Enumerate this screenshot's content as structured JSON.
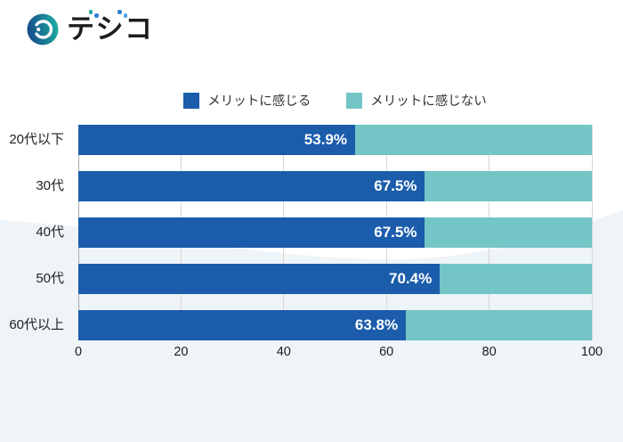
{
  "logo": {
    "name": "デジコ",
    "char1": "テ",
    "char2": "シ",
    "char3": "コ"
  },
  "colors": {
    "primary": "#1b5cab",
    "secondary": "#74c5c6",
    "wave": "#eef4f8",
    "grid": "#d6d6d6",
    "axis": "#a9a9a9",
    "logo_navy": "#17498c",
    "logo_teal": "#1caca0",
    "logo_blue": "#2e7ed5",
    "logo_blue2": "#4aa0e8"
  },
  "chart_data": {
    "type": "bar",
    "orientation": "horizontal",
    "stacked": true,
    "title": "",
    "xlabel": "",
    "ylabel": "",
    "xlim": [
      0,
      100
    ],
    "x_ticks": [
      0,
      20,
      40,
      60,
      80,
      100
    ],
    "grid": true,
    "legend_position": "top",
    "categories": [
      "20代以下",
      "30代",
      "40代",
      "50代",
      "60代以上"
    ],
    "series": [
      {
        "name": "メリットに感じる",
        "color": "#1b5cab",
        "values": [
          53.9,
          67.5,
          67.5,
          70.4,
          63.8
        ]
      },
      {
        "name": "メリットに感じない",
        "color": "#74c5c6",
        "values": [
          46.1,
          32.5,
          32.5,
          29.6,
          36.2
        ]
      }
    ],
    "value_labels": [
      "53.9%",
      "67.5%",
      "67.5%",
      "70.4%",
      "63.8%"
    ]
  }
}
